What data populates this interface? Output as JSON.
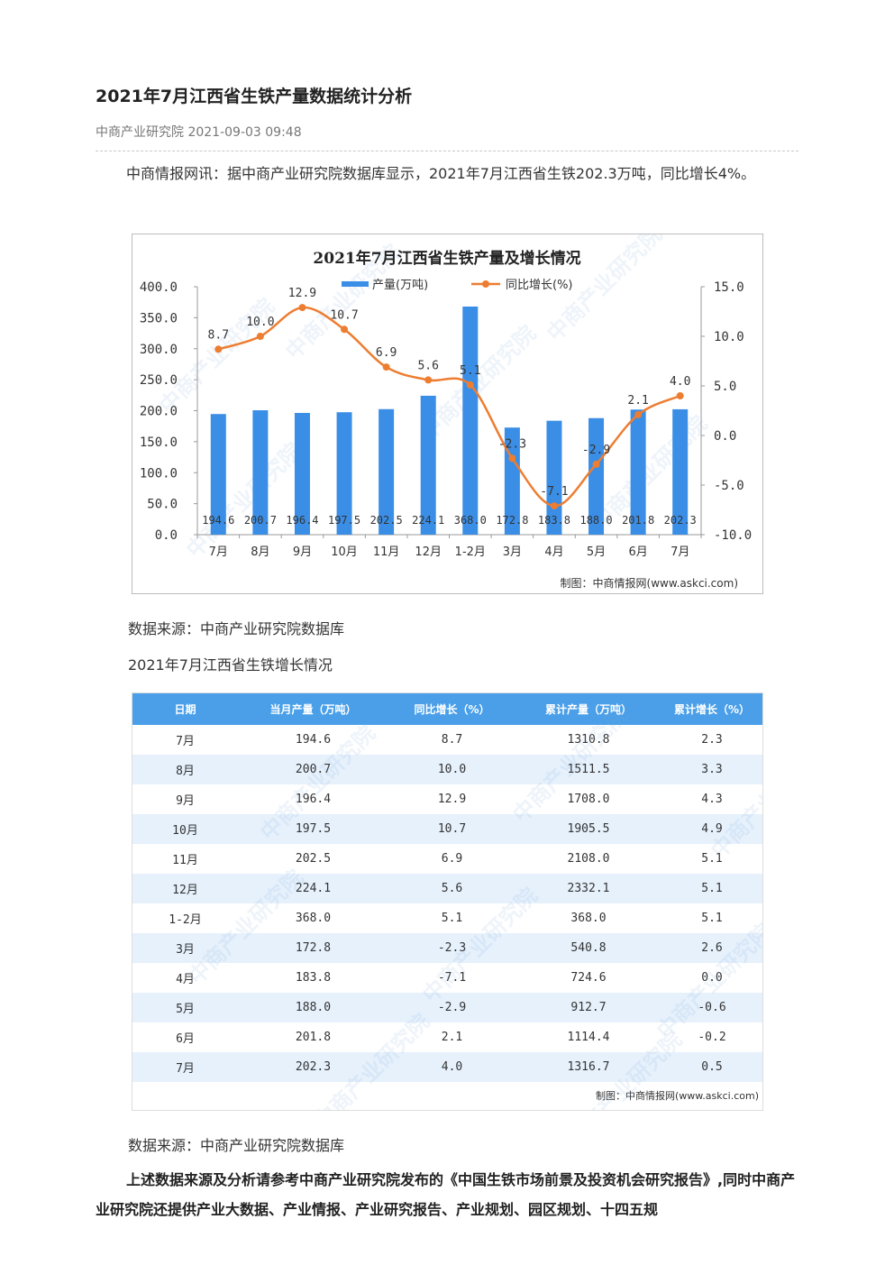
{
  "article": {
    "title": "2021年7月江西省生铁产量数据统计分析",
    "meta": "中商产业研究院 2021-09-03 09:48",
    "intro": "中商情报网讯：据中商产业研究院数据库显示，2021年7月江西省生铁202.3万吨，同比增长4%。",
    "source1": "数据来源：中商产业研究院数据库",
    "table_caption": "2021年7月江西省生铁增长情况",
    "source2": "数据来源：中商产业研究院数据库",
    "closing": "上述数据来源及分析请参考中商产业研究院发布的《中国生铁市场前景及投资机会研究报告》,同时中商产业研究院还提供产业大数据、产业情报、产业研究报告、产业规划、园区规划、十四五规"
  },
  "chart_data": {
    "type": "bar",
    "title": "2021年7月江西省生铁产量及增长情况",
    "categories": [
      "7月",
      "8月",
      "9月",
      "10月",
      "11月",
      "12月",
      "1-2月",
      "3月",
      "4月",
      "5月",
      "6月",
      "7月"
    ],
    "series": [
      {
        "name": "产量(万吨)",
        "type": "bar",
        "axis": "left",
        "color": "#3a8ee6",
        "values": [
          194.6,
          200.7,
          196.4,
          197.5,
          202.5,
          224.1,
          368.0,
          172.8,
          183.8,
          188.0,
          201.8,
          202.3
        ],
        "labels": [
          "194.6",
          "200.7",
          "196.4",
          "197.5",
          "202.5",
          "224.1",
          "368.0",
          "172.8",
          "183.8",
          "188.0",
          "201.8",
          "202.3"
        ]
      },
      {
        "name": "同比增长(%)",
        "type": "line",
        "axis": "right",
        "color": "#ed7d31",
        "values": [
          8.7,
          10.0,
          12.9,
          10.7,
          6.9,
          5.6,
          5.1,
          -2.3,
          -7.1,
          -2.9,
          2.1,
          4.0
        ],
        "labels": [
          "8.7",
          "10.0",
          "12.9",
          "10.7",
          "6.9",
          "5.6",
          "5.1",
          "-2.3",
          "-7.1",
          "-2.9",
          "2.1",
          "4.0"
        ]
      }
    ],
    "y_left": {
      "range": [
        0,
        400
      ],
      "ticks": [
        "0.0",
        "50.0",
        "100.0",
        "150.0",
        "200.0",
        "250.0",
        "300.0",
        "350.0",
        "400.0"
      ]
    },
    "y_right": {
      "range": [
        -10,
        15
      ],
      "ticks": [
        "-10.0",
        "-5.0",
        "0.0",
        "5.0",
        "10.0",
        "15.0"
      ]
    },
    "legend_position": "top",
    "credit": "制图：中商情报网(www.askci.com)"
  },
  "table": {
    "headers": [
      "日期",
      "当月产量（万吨）",
      "同比增长（%）",
      "累计产量（万吨）",
      "累计增长（%）"
    ],
    "rows": [
      [
        "7月",
        "194.6",
        "8.7",
        "1310.8",
        "2.3"
      ],
      [
        "8月",
        "200.7",
        "10.0",
        "1511.5",
        "3.3"
      ],
      [
        "9月",
        "196.4",
        "12.9",
        "1708.0",
        "4.3"
      ],
      [
        "10月",
        "197.5",
        "10.7",
        "1905.5",
        "4.9"
      ],
      [
        "11月",
        "202.5",
        "6.9",
        "2108.0",
        "5.1"
      ],
      [
        "12月",
        "224.1",
        "5.6",
        "2332.1",
        "5.1"
      ],
      [
        "1-2月",
        "368.0",
        "5.1",
        "368.0",
        "5.1"
      ],
      [
        "3月",
        "172.8",
        "-2.3",
        "540.8",
        "2.6"
      ],
      [
        "4月",
        "183.8",
        "-7.1",
        "724.6",
        "0.0"
      ],
      [
        "5月",
        "188.0",
        "-2.9",
        "912.7",
        "-0.6"
      ],
      [
        "6月",
        "201.8",
        "2.1",
        "1114.4",
        "-0.2"
      ],
      [
        "7月",
        "202.3",
        "4.0",
        "1316.7",
        "0.5"
      ]
    ],
    "credit": "制图：中商情报网(www.askci.com)"
  },
  "watermark": "中商产业研究院"
}
